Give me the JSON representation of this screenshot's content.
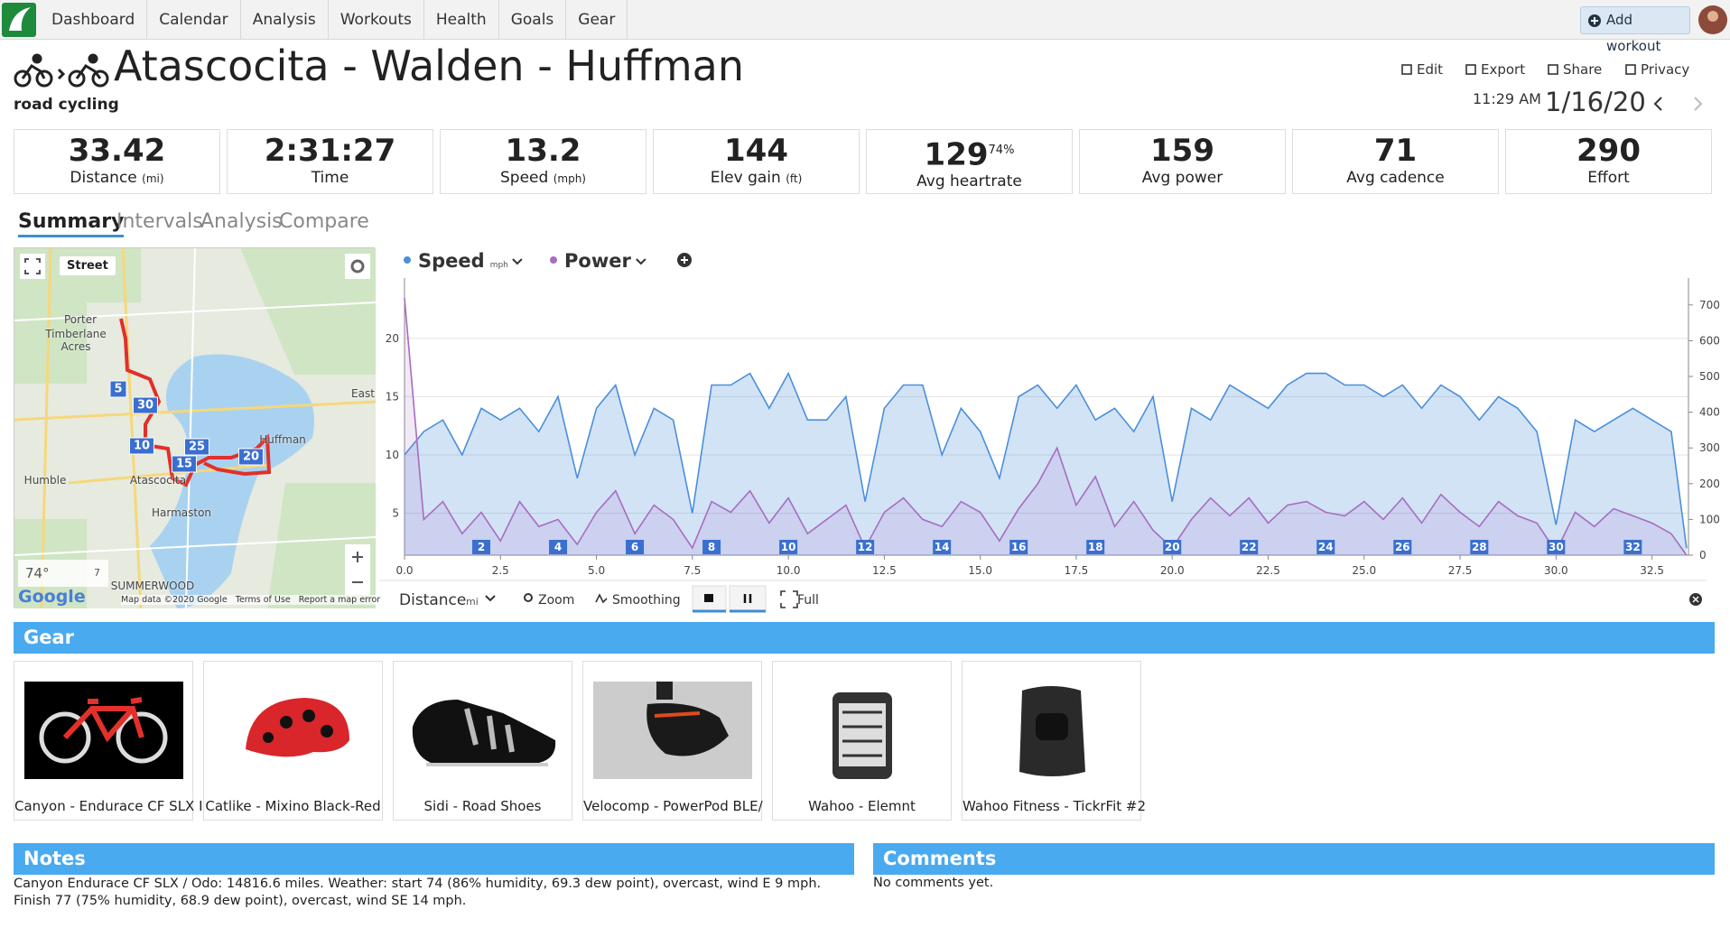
{
  "nav": {
    "items": [
      "Dashboard",
      "Calendar",
      "Analysis",
      "Workouts",
      "Health",
      "Goals",
      "Gear"
    ],
    "add_workout": "Add workout"
  },
  "header": {
    "title": "Atascocita - Walden - Huffman",
    "sport": "road cycling",
    "actions": [
      "Edit",
      "Export",
      "Share",
      "Privacy"
    ],
    "time": "11:29 AM",
    "date": "1/16/20"
  },
  "stats": [
    {
      "value": 33.42,
      "label": "Distance",
      "unit": "(mi)"
    },
    {
      "value": "2:31:27",
      "label": "Time"
    },
    {
      "value": 13.2,
      "label": "Speed",
      "unit": "(mph)"
    },
    {
      "value": 144,
      "label": "Elev gain",
      "unit": "(ft)"
    },
    {
      "value": 129,
      "percent": "74%",
      "label": "Avg heartrate"
    },
    {
      "value": 159,
      "label": "Avg power"
    },
    {
      "value": 71,
      "label": "Avg cadence"
    },
    {
      "value": 290,
      "label": "Effort"
    }
  ],
  "tabs": [
    "Summary",
    "Intervals",
    "Analysis",
    "Compare"
  ],
  "map": {
    "layer": "Street",
    "places": [
      "Porter",
      "Timberlane Acres",
      "East",
      "Huffman",
      "Humble",
      "Atascocita",
      "Harmaston",
      "SUMMERWOOD"
    ],
    "markers": [
      5,
      30,
      10,
      25,
      15,
      20
    ],
    "temperature": "74°",
    "wind": "7",
    "logo": "Google",
    "attribution": "Map data ©2020 Google",
    "terms": "Terms of Use",
    "report": "Report a map error"
  },
  "chart_data": {
    "type": "line",
    "x_axis": "Distance",
    "x_unit": "mi",
    "controls": [
      "Zoom",
      "Smoothing",
      "Full"
    ],
    "x": [
      0,
      0.5,
      1,
      1.5,
      2,
      2.5,
      3,
      3.5,
      4,
      4.5,
      5,
      5.5,
      6,
      6.5,
      7,
      7.5,
      8,
      8.5,
      9,
      9.5,
      10,
      10.5,
      11,
      11.5,
      12,
      12.5,
      13,
      13.5,
      14,
      14.5,
      15,
      15.5,
      16,
      16.5,
      17,
      17.5,
      18,
      18.5,
      19,
      19.5,
      20,
      20.5,
      21,
      21.5,
      22,
      22.5,
      23,
      23.5,
      24,
      24.5,
      25,
      25.5,
      26,
      26.5,
      27,
      27.5,
      28,
      28.5,
      29,
      29.5,
      30,
      30.5,
      31,
      31.5,
      32,
      32.5,
      33,
      33.4
    ],
    "series": [
      {
        "name": "Speed",
        "unit": "mph",
        "color": "#4a8fdc",
        "values": [
          10,
          12,
          13,
          10,
          14,
          13,
          14,
          12,
          15,
          8,
          14,
          16,
          10,
          14,
          13,
          5,
          16,
          16,
          17,
          14,
          17,
          13,
          13,
          15,
          6,
          14,
          16,
          16,
          10,
          14,
          12,
          8,
          15,
          16,
          14,
          16,
          13,
          14,
          12,
          15,
          6,
          14,
          13,
          16,
          15,
          14,
          16,
          17,
          17,
          16,
          16,
          15,
          16,
          14,
          16,
          15,
          13,
          15,
          14,
          12,
          4,
          13,
          12,
          13,
          14,
          13,
          12,
          2
        ]
      },
      {
        "name": "Power",
        "color": "#a86cc1",
        "axis": "y2",
        "values": [
          720,
          100,
          150,
          60,
          120,
          40,
          150,
          80,
          100,
          30,
          120,
          180,
          60,
          140,
          100,
          20,
          150,
          120,
          180,
          90,
          160,
          60,
          100,
          140,
          20,
          120,
          160,
          100,
          80,
          150,
          120,
          40,
          130,
          200,
          300,
          140,
          220,
          80,
          150,
          70,
          20,
          100,
          160,
          110,
          160,
          90,
          140,
          150,
          120,
          110,
          150,
          100,
          160,
          90,
          170,
          120,
          80,
          150,
          110,
          90,
          10,
          120,
          80,
          130,
          110,
          90,
          60,
          0
        ]
      }
    ],
    "xlim": [
      0,
      33.45
    ],
    "xticks": [
      {
        "value": 0,
        "label": "0.0"
      },
      2.5,
      {
        "value": 5,
        "label": "5.0"
      },
      7.5,
      {
        "value": 10,
        "label": "10.0"
      },
      12.5,
      {
        "value": 15,
        "label": "15.0"
      },
      17.5,
      {
        "value": 20,
        "label": "20.0"
      },
      22.5,
      {
        "value": 25,
        "label": "25.0"
      },
      27.5,
      {
        "value": 30,
        "label": "30.0"
      },
      32.5
    ],
    "ylim": [
      1.4,
      24.4
    ],
    "yticks": [
      5,
      10,
      15,
      20
    ],
    "y2lim": [
      0,
      750
    ],
    "y2ticks": [
      0,
      100,
      200,
      300,
      400,
      500,
      600,
      700
    ],
    "grid": true,
    "lap_markers": [
      2,
      4,
      6,
      8,
      10,
      12,
      14,
      16,
      18,
      20,
      22,
      24,
      26,
      28,
      30,
      32
    ]
  },
  "gear": {
    "title": "Gear",
    "items": [
      "Canyon - Endurace CF SLX I",
      "Catlike - Mixino Black-Red",
      "Sidi - Road Shoes",
      "Velocomp - PowerPod BLE/",
      "Wahoo - Elemnt",
      "Wahoo Fitness - TickrFit #2"
    ]
  },
  "notes": {
    "title": "Notes",
    "text": "Canyon Endurace CF SLX / Odo: 14816.6 miles. Weather: start 74 (86% humidity, 69.3 dew point), overcast, wind E 9 mph. Finish 77 (75% humidity, 68.9 dew point), overcast, wind SE 14 mph."
  },
  "comments": {
    "title": "Comments",
    "text": "No comments yet."
  }
}
